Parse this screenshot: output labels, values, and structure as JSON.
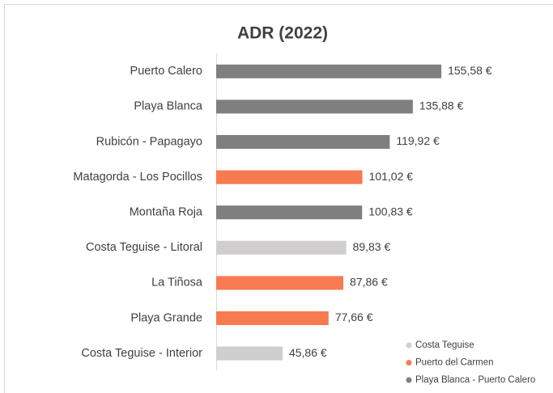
{
  "chart_data": {
    "type": "bar",
    "orientation": "horizontal",
    "title": "ADR (2022)",
    "categories": [
      "Puerto Calero",
      "Playa Blanca",
      "Rubicón - Papagayo",
      "Matagorda - Los Pocillos",
      "Montaña Roja",
      "Costa Teguise - Litoral",
      "La Tiñosa",
      "Playa Grande",
      "Costa Teguise - Interior"
    ],
    "series": [
      {
        "name": "Costa Teguise",
        "color": "#d0cece",
        "values": [
          null,
          null,
          null,
          null,
          null,
          89.83,
          null,
          null,
          45.86
        ],
        "value_labels": [
          null,
          null,
          null,
          null,
          null,
          "89,83 €",
          null,
          null,
          "45,86 €"
        ]
      },
      {
        "name": "Puerto del Carmen",
        "color": "#f87a50",
        "values": [
          null,
          null,
          null,
          101.02,
          null,
          null,
          87.86,
          77.66,
          null
        ],
        "value_labels": [
          null,
          null,
          null,
          "101,02 €",
          null,
          null,
          "87,86 €",
          "77,66 €",
          null
        ]
      },
      {
        "name": "Playa Blanca - Puerto Calero",
        "color": "#7f7f7f",
        "values": [
          155.58,
          135.88,
          119.92,
          null,
          100.83,
          null,
          null,
          null,
          null
        ],
        "value_labels": [
          "155,58 €",
          "135,88 €",
          "119,92 €",
          null,
          "100,83 €",
          null,
          null,
          null,
          null
        ]
      }
    ],
    "xlim": [
      0,
      200
    ],
    "legend": "bottom-right"
  }
}
